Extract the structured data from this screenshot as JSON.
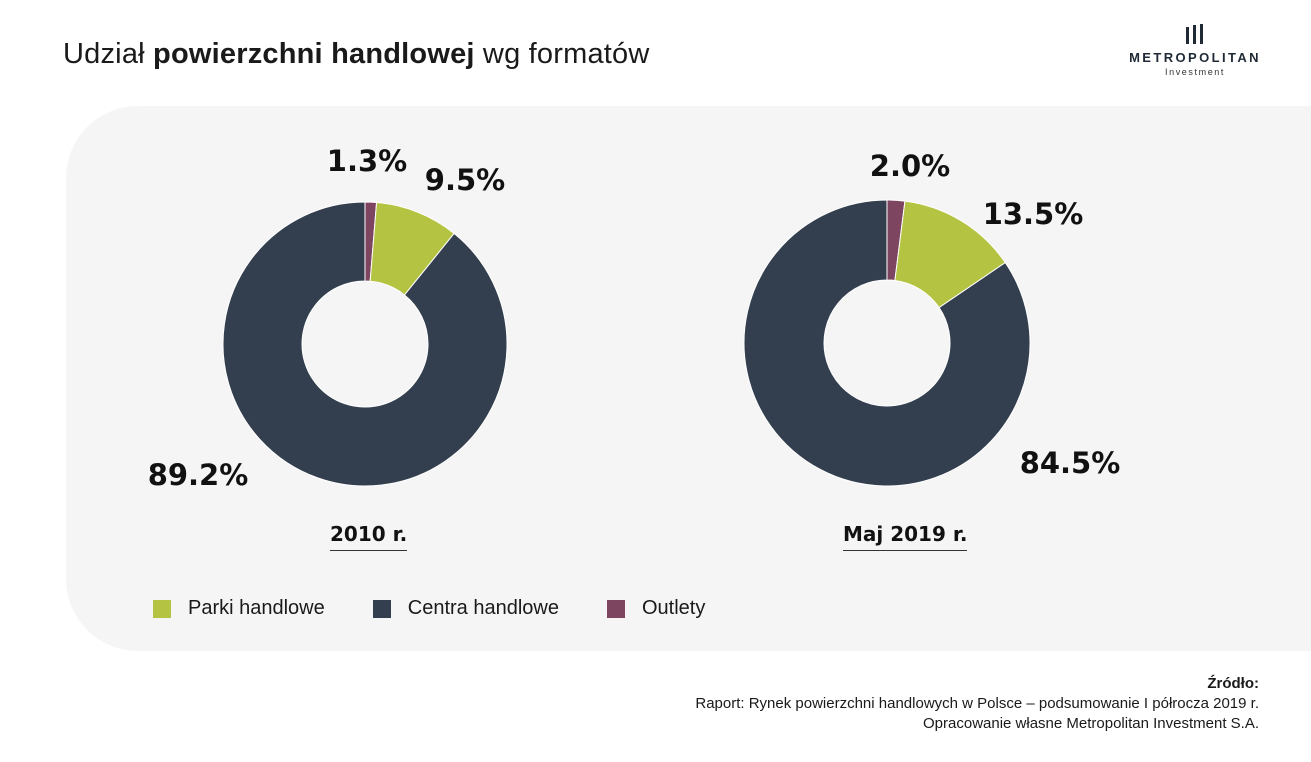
{
  "header": {
    "title_pre": "Udział ",
    "title_bold": "powierzchni handlowej",
    "title_post": " wg formatów"
  },
  "logo": {
    "name": "METROPOLITAN",
    "sub": "Investment"
  },
  "colors": {
    "parki": "#b5c342",
    "centra": "#333f4e",
    "outlety": "#7d4560",
    "panel": "#f5f5f5"
  },
  "chart_data": [
    {
      "type": "pie",
      "variant": "donut",
      "title": "2010 r.",
      "slices": [
        {
          "name": "Outlety",
          "value": 1.3,
          "label": "1.3%"
        },
        {
          "name": "Parki handlowe",
          "value": 9.5,
          "label": "9.5%"
        },
        {
          "name": "Centra handlowe",
          "value": 89.2,
          "label": "89.2%"
        }
      ]
    },
    {
      "type": "pie",
      "variant": "donut",
      "title": "Maj 2019 r.",
      "slices": [
        {
          "name": "Outlety",
          "value": 2.0,
          "label": "2.0%"
        },
        {
          "name": "Parki handlowe",
          "value": 13.5,
          "label": "13.5%"
        },
        {
          "name": "Centra handlowe",
          "value": 84.5,
          "label": "84.5%"
        }
      ]
    }
  ],
  "legend": {
    "placement": "bottom-left",
    "items": [
      {
        "label": "Parki handlowe",
        "color": "#b5c342"
      },
      {
        "label": "Centra handlowe",
        "color": "#333f4e"
      },
      {
        "label": "Outlety",
        "color": "#7d4560"
      }
    ]
  },
  "source": {
    "heading": "Źródło:",
    "line1": "Raport: Rynek powierzchni handlowych w Polsce – podsumowanie I półrocza 2019 r.",
    "line2": "Opracowanie własne Metropolitan Investment S.A."
  }
}
